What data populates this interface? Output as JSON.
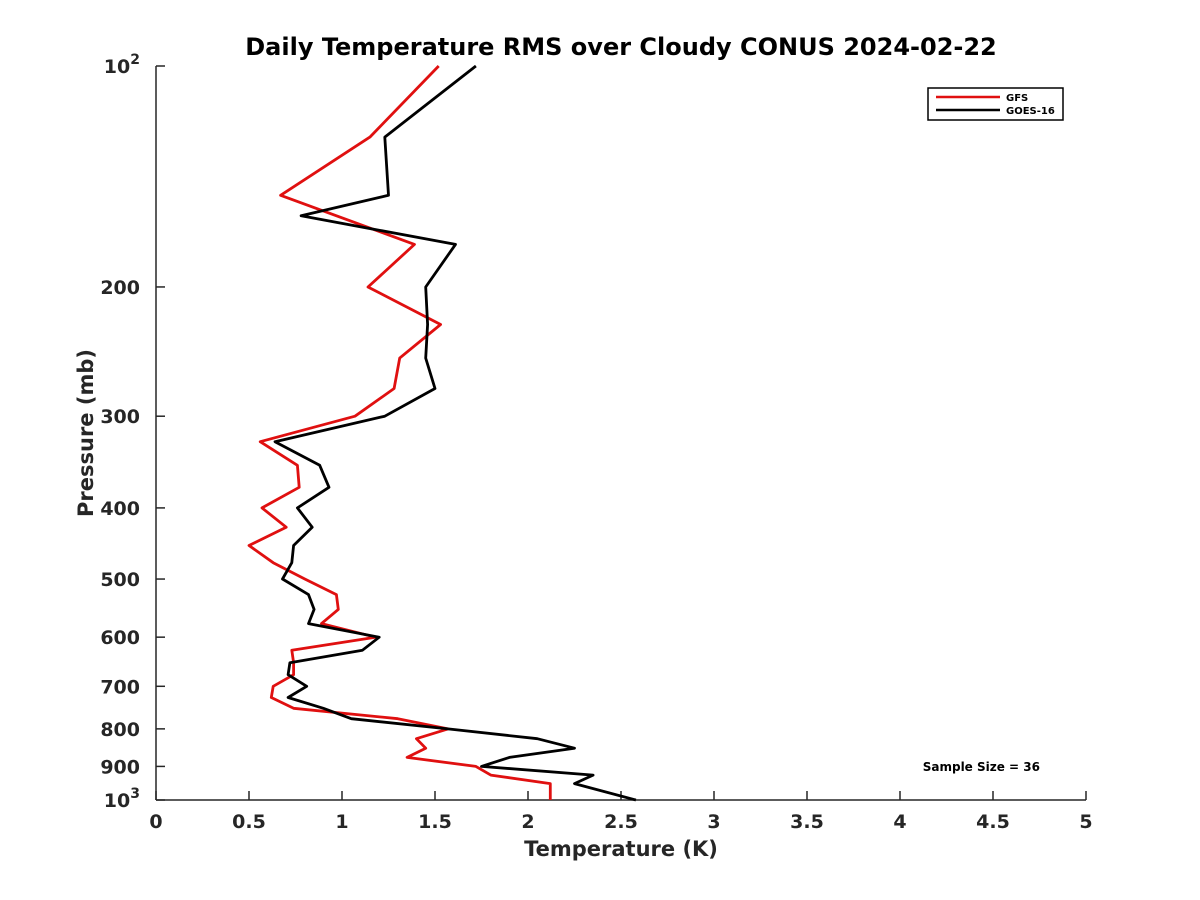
{
  "chart_data": {
    "type": "line",
    "title": "Daily Temperature RMS over Cloudy CONUS 2024-02-22",
    "xlabel": "Temperature (K)",
    "ylabel": "Pressure (mb)",
    "xlim": [
      0,
      5
    ],
    "ylim": [
      100,
      1000
    ],
    "y_scale": "log",
    "y_reversed": true,
    "grid": false,
    "legend_position": "top-right",
    "x_ticks": [
      "0",
      "0.5",
      "1",
      "1.5",
      "2",
      "2.5",
      "3",
      "3.5",
      "4",
      "4.5",
      "5"
    ],
    "y_ticks": [
      {
        "value": 100,
        "base": "10",
        "exp": "2"
      },
      {
        "value": 200,
        "label": "200"
      },
      {
        "value": 300,
        "label": "300"
      },
      {
        "value": 400,
        "label": "400"
      },
      {
        "value": 500,
        "label": "500"
      },
      {
        "value": 600,
        "label": "600"
      },
      {
        "value": 700,
        "label": "700"
      },
      {
        "value": 800,
        "label": "800"
      },
      {
        "value": 900,
        "label": "900"
      },
      {
        "value": 1000,
        "base": "10",
        "exp": "3"
      }
    ],
    "annotation": "Sample Size = 36",
    "series": [
      {
        "name": "GFS",
        "color": "#e01010",
        "points": [
          {
            "x": 1.52,
            "y": 100
          },
          {
            "x": 1.15,
            "y": 125
          },
          {
            "x": 0.67,
            "y": 150
          },
          {
            "x": 1.39,
            "y": 175
          },
          {
            "x": 1.14,
            "y": 200
          },
          {
            "x": 1.53,
            "y": 225
          },
          {
            "x": 1.31,
            "y": 250
          },
          {
            "x": 1.28,
            "y": 275
          },
          {
            "x": 1.07,
            "y": 300
          },
          {
            "x": 0.56,
            "y": 325
          },
          {
            "x": 0.76,
            "y": 350
          },
          {
            "x": 0.77,
            "y": 375
          },
          {
            "x": 0.57,
            "y": 400
          },
          {
            "x": 0.7,
            "y": 425
          },
          {
            "x": 0.5,
            "y": 450
          },
          {
            "x": 0.63,
            "y": 475
          },
          {
            "x": 0.8,
            "y": 500
          },
          {
            "x": 0.97,
            "y": 525
          },
          {
            "x": 0.98,
            "y": 550
          },
          {
            "x": 0.89,
            "y": 575
          },
          {
            "x": 1.18,
            "y": 600
          },
          {
            "x": 0.73,
            "y": 625
          },
          {
            "x": 0.74,
            "y": 650
          },
          {
            "x": 0.74,
            "y": 675
          },
          {
            "x": 0.63,
            "y": 700
          },
          {
            "x": 0.62,
            "y": 725
          },
          {
            "x": 0.74,
            "y": 750
          },
          {
            "x": 1.3,
            "y": 775
          },
          {
            "x": 1.57,
            "y": 800
          },
          {
            "x": 1.4,
            "y": 825
          },
          {
            "x": 1.45,
            "y": 850
          },
          {
            "x": 1.35,
            "y": 875
          },
          {
            "x": 1.72,
            "y": 900
          },
          {
            "x": 1.8,
            "y": 925
          },
          {
            "x": 2.12,
            "y": 950
          },
          {
            "x": 2.12,
            "y": 1000
          }
        ]
      },
      {
        "name": "GOES-16",
        "color": "#000000",
        "points": [
          {
            "x": 1.72,
            "y": 100
          },
          {
            "x": 1.23,
            "y": 125
          },
          {
            "x": 1.25,
            "y": 150
          },
          {
            "x": 0.78,
            "y": 160
          },
          {
            "x": 1.61,
            "y": 175
          },
          {
            "x": 1.45,
            "y": 200
          },
          {
            "x": 1.46,
            "y": 225
          },
          {
            "x": 1.45,
            "y": 250
          },
          {
            "x": 1.5,
            "y": 275
          },
          {
            "x": 1.23,
            "y": 300
          },
          {
            "x": 0.64,
            "y": 325
          },
          {
            "x": 0.88,
            "y": 350
          },
          {
            "x": 0.93,
            "y": 375
          },
          {
            "x": 0.76,
            "y": 400
          },
          {
            "x": 0.84,
            "y": 425
          },
          {
            "x": 0.74,
            "y": 450
          },
          {
            "x": 0.73,
            "y": 475
          },
          {
            "x": 0.68,
            "y": 500
          },
          {
            "x": 0.82,
            "y": 525
          },
          {
            "x": 0.85,
            "y": 550
          },
          {
            "x": 0.82,
            "y": 575
          },
          {
            "x": 1.2,
            "y": 600
          },
          {
            "x": 1.11,
            "y": 625
          },
          {
            "x": 0.72,
            "y": 650
          },
          {
            "x": 0.71,
            "y": 675
          },
          {
            "x": 0.81,
            "y": 700
          },
          {
            "x": 0.71,
            "y": 725
          },
          {
            "x": 0.9,
            "y": 750
          },
          {
            "x": 1.05,
            "y": 775
          },
          {
            "x": 1.57,
            "y": 800
          },
          {
            "x": 2.05,
            "y": 825
          },
          {
            "x": 2.25,
            "y": 850
          },
          {
            "x": 1.9,
            "y": 875
          },
          {
            "x": 1.75,
            "y": 900
          },
          {
            "x": 2.35,
            "y": 925
          },
          {
            "x": 2.25,
            "y": 950
          },
          {
            "x": 2.58,
            "y": 1000
          }
        ]
      }
    ]
  }
}
